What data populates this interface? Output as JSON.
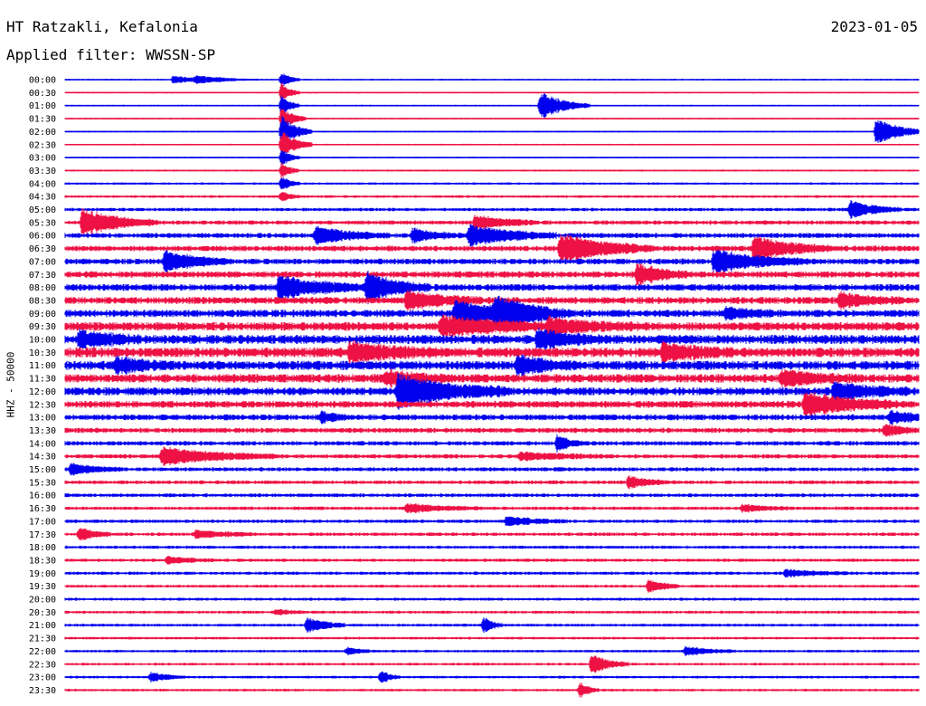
{
  "header": {
    "station": "HT Ratzakli, Kefalonia",
    "date": "2023-01-05",
    "filter_label": "Applied filter: WWSSN-SP"
  },
  "chart_data": {
    "type": "line",
    "title": "HT Ratzakli, Kefalonia",
    "subtitle": "Applied filter: WWSSN-SP",
    "ylabel": "HHZ - 50000",
    "xlabel": "",
    "row_labels": [
      "00:00",
      "00:30",
      "01:00",
      "01:30",
      "02:00",
      "02:30",
      "03:00",
      "03:30",
      "04:00",
      "04:30",
      "05:00",
      "05:30",
      "06:00",
      "06:30",
      "07:00",
      "07:30",
      "08:00",
      "08:30",
      "09:00",
      "09:30",
      "10:00",
      "10:30",
      "11:00",
      "11:30",
      "12:00",
      "12:30",
      "13:00",
      "13:30",
      "14:00",
      "14:30",
      "15:00",
      "15:30",
      "16:00",
      "16:30",
      "17:00",
      "17:30",
      "18:00",
      "18:30",
      "19:00",
      "19:30",
      "20:00",
      "20:30",
      "21:00",
      "21:30",
      "22:00",
      "22:30",
      "23:00",
      "23:30"
    ],
    "minutes_per_row": 30,
    "colors": [
      "#0000ee",
      "#ee1144"
    ],
    "noise_level_per_row": [
      0.6,
      0.6,
      0.6,
      0.6,
      0.6,
      0.6,
      0.6,
      0.7,
      0.9,
      1,
      1.3,
      1.6,
      1.9,
      2.1,
      2.2,
      2.4,
      2.5,
      2.6,
      2.8,
      3.2,
      3.4,
      3.6,
      3.4,
      3.2,
      3,
      2.6,
      2.2,
      1.9,
      1.7,
      1.6,
      1.5,
      1.4,
      1.4,
      1.3,
      1.3,
      1.3,
      1.2,
      1.2,
      1.2,
      1.1,
      1.1,
      1.1,
      1.1,
      1,
      1,
      1,
      1,
      1
    ],
    "events": [
      {
        "row": 0,
        "minute": 3.8,
        "amplitude": 4,
        "duration": 1
      },
      {
        "row": 0,
        "minute": 4.6,
        "amplitude": 3,
        "duration": 1
      },
      {
        "row": 0,
        "minute": 7.6,
        "amplitude": 9,
        "duration": 0.3
      },
      {
        "row": 1,
        "minute": 7.6,
        "amplitude": 11,
        "duration": 0.3
      },
      {
        "row": 2,
        "minute": 7.6,
        "amplitude": 12,
        "duration": 0.3
      },
      {
        "row": 2,
        "minute": 16.7,
        "amplitude": 16,
        "duration": 0.8
      },
      {
        "row": 3,
        "minute": 7.6,
        "amplitude": 14,
        "duration": 0.4
      },
      {
        "row": 4,
        "minute": 7.6,
        "amplitude": 18,
        "duration": 0.5
      },
      {
        "row": 4,
        "minute": 28.5,
        "amplitude": 16,
        "duration": 0.8
      },
      {
        "row": 5,
        "minute": 7.6,
        "amplitude": 16,
        "duration": 0.5
      },
      {
        "row": 6,
        "minute": 7.6,
        "amplitude": 10,
        "duration": 0.3
      },
      {
        "row": 7,
        "minute": 7.6,
        "amplitude": 9,
        "duration": 0.3
      },
      {
        "row": 8,
        "minute": 7.6,
        "amplitude": 8,
        "duration": 0.3
      },
      {
        "row": 9,
        "minute": 7.6,
        "amplitude": 6,
        "duration": 0.3
      },
      {
        "row": 10,
        "minute": 27.6,
        "amplitude": 10,
        "duration": 0.8
      },
      {
        "row": 11,
        "minute": 0.6,
        "amplitude": 15,
        "duration": 1.2
      },
      {
        "row": 11,
        "minute": 14.4,
        "amplitude": 8,
        "duration": 1
      },
      {
        "row": 12,
        "minute": 8.8,
        "amplitude": 9,
        "duration": 1.2
      },
      {
        "row": 12,
        "minute": 12.2,
        "amplitude": 7,
        "duration": 0.8
      },
      {
        "row": 12,
        "minute": 14.2,
        "amplitude": 12,
        "duration": 1.4
      },
      {
        "row": 13,
        "minute": 17.4,
        "amplitude": 16,
        "duration": 1.5
      },
      {
        "row": 13,
        "minute": 24.2,
        "amplitude": 14,
        "duration": 1.2
      },
      {
        "row": 14,
        "minute": 3.5,
        "amplitude": 11,
        "duration": 1
      },
      {
        "row": 14,
        "minute": 22.8,
        "amplitude": 12,
        "duration": 1.5
      },
      {
        "row": 15,
        "minute": 20.1,
        "amplitude": 12,
        "duration": 0.8
      },
      {
        "row": 16,
        "minute": 7.5,
        "amplitude": 12,
        "duration": 1.5
      },
      {
        "row": 16,
        "minute": 10.6,
        "amplitude": 16,
        "duration": 1
      },
      {
        "row": 17,
        "minute": 12.0,
        "amplitude": 10,
        "duration": 1.2
      },
      {
        "row": 17,
        "minute": 27.2,
        "amplitude": 8,
        "duration": 1
      },
      {
        "row": 18,
        "minute": 13.7,
        "amplitude": 14,
        "duration": 1.5
      },
      {
        "row": 18,
        "minute": 15.1,
        "amplitude": 16,
        "duration": 1.2
      },
      {
        "row": 18,
        "minute": 23.2,
        "amplitude": 6,
        "duration": 0.8
      },
      {
        "row": 19,
        "minute": 13.2,
        "amplitude": 10,
        "duration": 2
      },
      {
        "row": 19,
        "minute": 17.0,
        "amplitude": 7,
        "duration": 1.5
      },
      {
        "row": 20,
        "minute": 0.5,
        "amplitude": 9,
        "duration": 1
      },
      {
        "row": 20,
        "minute": 16.6,
        "amplitude": 11,
        "duration": 1
      },
      {
        "row": 21,
        "minute": 10.0,
        "amplitude": 10,
        "duration": 1.5
      },
      {
        "row": 21,
        "minute": 21.0,
        "amplitude": 9,
        "duration": 1.2
      },
      {
        "row": 22,
        "minute": 1.8,
        "amplitude": 9,
        "duration": 0.8
      },
      {
        "row": 22,
        "minute": 15.9,
        "amplitude": 9,
        "duration": 1
      },
      {
        "row": 23,
        "minute": 11.3,
        "amplitude": 8,
        "duration": 1
      },
      {
        "row": 23,
        "minute": 25.2,
        "amplitude": 7,
        "duration": 1.2
      },
      {
        "row": 24,
        "minute": 11.7,
        "amplitude": 18,
        "duration": 1.8
      },
      {
        "row": 24,
        "minute": 27.0,
        "amplitude": 9,
        "duration": 1.2
      },
      {
        "row": 25,
        "minute": 26.0,
        "amplitude": 13,
        "duration": 1.5
      },
      {
        "row": 26,
        "minute": 9.0,
        "amplitude": 5,
        "duration": 0.5
      },
      {
        "row": 26,
        "minute": 29.0,
        "amplitude": 6,
        "duration": 1
      },
      {
        "row": 27,
        "minute": 28.8,
        "amplitude": 7,
        "duration": 0.6
      },
      {
        "row": 28,
        "minute": 17.3,
        "amplitude": 9,
        "duration": 0.4
      },
      {
        "row": 29,
        "minute": 3.4,
        "amplitude": 10,
        "duration": 1.8
      },
      {
        "row": 29,
        "minute": 16.0,
        "amplitude": 4,
        "duration": 1.5
      },
      {
        "row": 30,
        "minute": 0.2,
        "amplitude": 6,
        "duration": 0.8
      },
      {
        "row": 31,
        "minute": 19.8,
        "amplitude": 7,
        "duration": 0.6
      },
      {
        "row": 33,
        "minute": 12.0,
        "amplitude": 5,
        "duration": 1.2
      },
      {
        "row": 33,
        "minute": 23.8,
        "amplitude": 4,
        "duration": 0.8
      },
      {
        "row": 34,
        "minute": 15.5,
        "amplitude": 5,
        "duration": 1
      },
      {
        "row": 35,
        "minute": 0.5,
        "amplitude": 8,
        "duration": 0.5
      },
      {
        "row": 35,
        "minute": 4.6,
        "amplitude": 4,
        "duration": 1
      },
      {
        "row": 37,
        "minute": 3.6,
        "amplitude": 4,
        "duration": 0.8
      },
      {
        "row": 38,
        "minute": 25.3,
        "amplitude": 4,
        "duration": 1
      },
      {
        "row": 39,
        "minute": 20.5,
        "amplitude": 8,
        "duration": 0.5
      },
      {
        "row": 41,
        "minute": 7.4,
        "amplitude": 3,
        "duration": 0.5
      },
      {
        "row": 42,
        "minute": 8.5,
        "amplitude": 9,
        "duration": 0.6
      },
      {
        "row": 42,
        "minute": 14.7,
        "amplitude": 9,
        "duration": 0.3
      },
      {
        "row": 44,
        "minute": 9.9,
        "amplitude": 4,
        "duration": 0.5
      },
      {
        "row": 44,
        "minute": 21.8,
        "amplitude": 5,
        "duration": 0.8
      },
      {
        "row": 45,
        "minute": 18.5,
        "amplitude": 11,
        "duration": 0.6
      },
      {
        "row": 46,
        "minute": 3.0,
        "amplitude": 5,
        "duration": 0.6
      },
      {
        "row": 46,
        "minute": 11.1,
        "amplitude": 7,
        "duration": 0.3
      },
      {
        "row": 47,
        "minute": 18.1,
        "amplitude": 9,
        "duration": 0.3
      }
    ]
  }
}
